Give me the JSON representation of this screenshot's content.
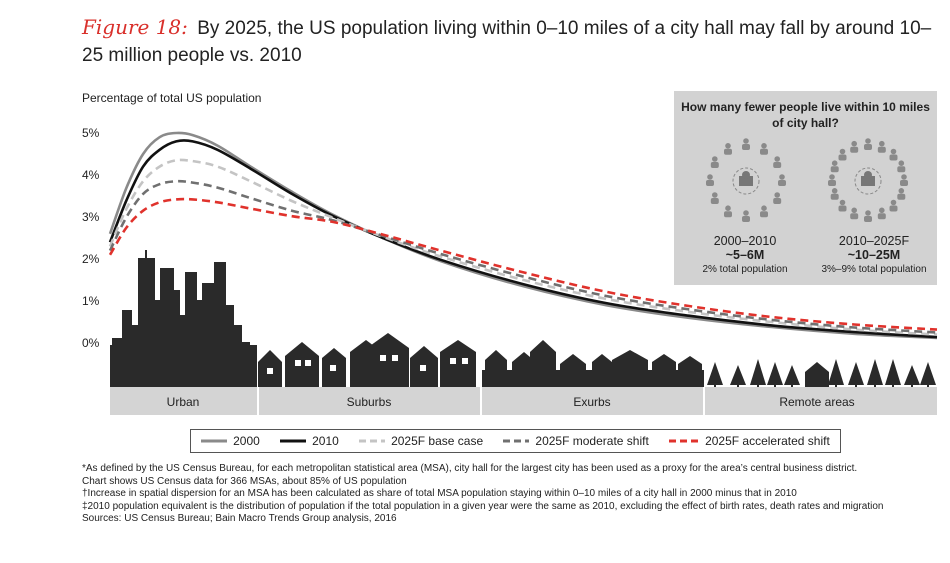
{
  "title": {
    "figure_label": "Figure 18:",
    "text": "By 2025, the US population living within 0–10 miles of a city hall may fall by around 10–25 million people vs. 2010"
  },
  "chart_data": {
    "type": "line",
    "ylabel": "Percentage of total US population",
    "y_ticks": [
      "5%",
      "4%",
      "3%",
      "2%",
      "1%",
      "0%"
    ],
    "ylim": [
      0,
      5
    ],
    "x_categories": [
      "Urban",
      "Suburbs",
      "Exurbs",
      "Remote areas"
    ],
    "series": [
      {
        "name": "2000",
        "color": "#8a8a8a",
        "dash": "solid",
        "points": [
          [
            0,
            2.6
          ],
          [
            0.02,
            3.7
          ],
          [
            0.04,
            4.5
          ],
          [
            0.06,
            4.9
          ],
          [
            0.08,
            5.0
          ],
          [
            0.1,
            4.95
          ],
          [
            0.13,
            4.7
          ],
          [
            0.17,
            4.2
          ],
          [
            0.22,
            3.6
          ],
          [
            0.27,
            3.05
          ],
          [
            0.33,
            2.5
          ],
          [
            0.4,
            1.95
          ],
          [
            0.5,
            1.35
          ],
          [
            0.6,
            0.9
          ],
          [
            0.7,
            0.6
          ],
          [
            0.8,
            0.38
          ],
          [
            0.9,
            0.22
          ],
          [
            1,
            0.12
          ]
        ]
      },
      {
        "name": "2010",
        "color": "#111111",
        "dash": "solid",
        "points": [
          [
            0,
            2.4
          ],
          [
            0.02,
            3.4
          ],
          [
            0.04,
            4.2
          ],
          [
            0.06,
            4.6
          ],
          [
            0.08,
            4.8
          ],
          [
            0.1,
            4.8
          ],
          [
            0.13,
            4.6
          ],
          [
            0.17,
            4.15
          ],
          [
            0.22,
            3.55
          ],
          [
            0.27,
            3.02
          ],
          [
            0.33,
            2.5
          ],
          [
            0.4,
            1.98
          ],
          [
            0.5,
            1.4
          ],
          [
            0.6,
            0.95
          ],
          [
            0.7,
            0.65
          ],
          [
            0.8,
            0.42
          ],
          [
            0.9,
            0.26
          ],
          [
            1,
            0.14
          ]
        ]
      },
      {
        "name": "2025F base case",
        "color": "#c4c4c4",
        "dash": "8,5",
        "points": [
          [
            0,
            2.3
          ],
          [
            0.02,
            3.2
          ],
          [
            0.04,
            3.85
          ],
          [
            0.06,
            4.2
          ],
          [
            0.08,
            4.35
          ],
          [
            0.1,
            4.33
          ],
          [
            0.13,
            4.2
          ],
          [
            0.17,
            3.85
          ],
          [
            0.22,
            3.38
          ],
          [
            0.27,
            2.98
          ],
          [
            0.33,
            2.53
          ],
          [
            0.4,
            2.06
          ],
          [
            0.5,
            1.5
          ],
          [
            0.6,
            1.05
          ],
          [
            0.7,
            0.74
          ],
          [
            0.8,
            0.5
          ],
          [
            0.9,
            0.32
          ],
          [
            1,
            0.2
          ]
        ]
      },
      {
        "name": "2025F moderate shift",
        "color": "#707070",
        "dash": "8,5",
        "points": [
          [
            0,
            2.2
          ],
          [
            0.02,
            3.0
          ],
          [
            0.04,
            3.55
          ],
          [
            0.06,
            3.78
          ],
          [
            0.08,
            3.85
          ],
          [
            0.1,
            3.82
          ],
          [
            0.13,
            3.7
          ],
          [
            0.17,
            3.45
          ],
          [
            0.22,
            3.15
          ],
          [
            0.27,
            2.92
          ],
          [
            0.33,
            2.55
          ],
          [
            0.4,
            2.12
          ],
          [
            0.5,
            1.58
          ],
          [
            0.6,
            1.12
          ],
          [
            0.7,
            0.8
          ],
          [
            0.8,
            0.55
          ],
          [
            0.9,
            0.37
          ],
          [
            1,
            0.25
          ]
        ]
      },
      {
        "name": "2025F accelerated shift",
        "color": "#e0322c",
        "dash": "8,5",
        "points": [
          [
            0,
            2.1
          ],
          [
            0.02,
            2.75
          ],
          [
            0.04,
            3.15
          ],
          [
            0.06,
            3.35
          ],
          [
            0.08,
            3.42
          ],
          [
            0.1,
            3.42
          ],
          [
            0.13,
            3.35
          ],
          [
            0.17,
            3.2
          ],
          [
            0.22,
            3.02
          ],
          [
            0.27,
            2.88
          ],
          [
            0.33,
            2.58
          ],
          [
            0.4,
            2.2
          ],
          [
            0.5,
            1.68
          ],
          [
            0.6,
            1.22
          ],
          [
            0.7,
            0.88
          ],
          [
            0.8,
            0.62
          ],
          [
            0.9,
            0.44
          ],
          [
            1,
            0.32
          ]
        ]
      }
    ]
  },
  "inset": {
    "question": "How many fewer people live within 10 miles of city hall?",
    "left": {
      "period": "2000–2010",
      "value": "~5–6M",
      "share": "2% total population"
    },
    "right": {
      "period": "2010–2025F",
      "value": "~10–25M",
      "share": "3%–9% total population"
    }
  },
  "legend": [
    "2000",
    "2010",
    "2025F base case",
    "2025F moderate shift",
    "2025F accelerated shift"
  ],
  "footnotes": [
    "*As defined by the US Census Bureau, for each metropolitan statistical area (MSA), city hall for the largest city has been used as a proxy for the area’s central business district.",
    "Chart shows US Census data for 366 MSAs, about 85% of US population",
    "†Increase in spatial dispersion for an MSA has been calculated as share of total MSA population staying within 0–10 miles of a city hall in 2000 minus that in 2010",
    "‡2010 population equivalent is the distribution of population if the total population in a given year were the same as 2010, excluding the effect of birth rates, death rates and migration",
    "Sources: US Census Bureau; Bain Macro Trends Group analysis, 2016"
  ]
}
